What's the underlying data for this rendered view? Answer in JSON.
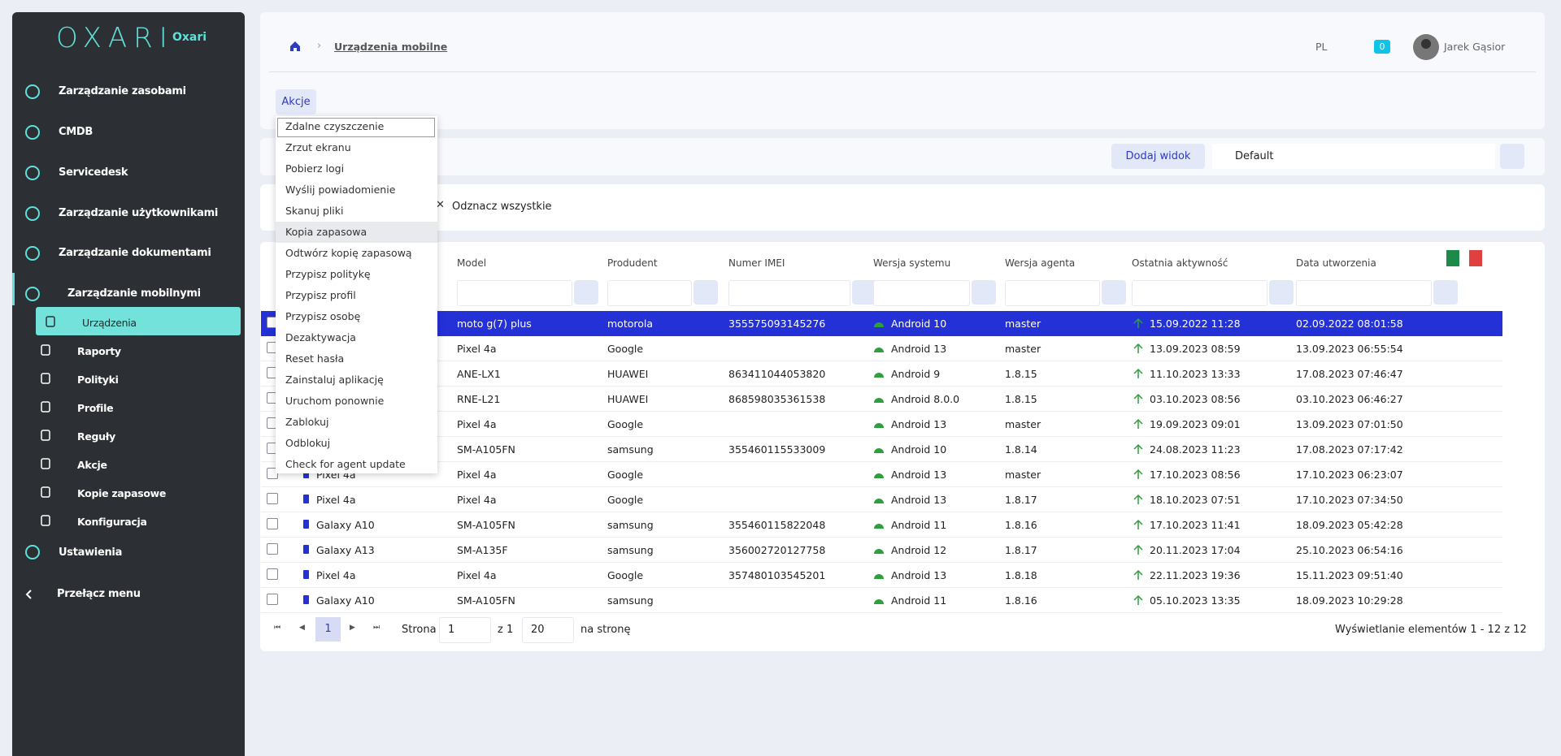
{
  "sidebar": {
    "logo": "OXARI",
    "brand": "Oxari",
    "menu": [
      "Zarządzanie zasobami",
      "CMDB",
      "Servicedesk",
      "Zarządzanie użytkownikami",
      "Zarządzanie dokumentami",
      "Zarządzanie mobilnymi"
    ],
    "submenu": [
      "Urządzenia",
      "Raporty",
      "Polityki",
      "Profile",
      "Reguły",
      "Akcje",
      "Kopie zapasowe",
      "Konfiguracja"
    ],
    "settings": "Ustawienia",
    "toggle": "Przełącz menu"
  },
  "header": {
    "breadcrumb": "Urządzenia mobilne",
    "language": "PL",
    "notifications": 0,
    "user": "Jarek Gąsior"
  },
  "actions": {
    "button": "Akcje",
    "items": [
      "Zdalne czyszczenie",
      "Zrzut ekranu",
      "Pobierz logi",
      "Wyślij powiadomienie",
      "Skanuj pliki",
      "Kopia zapasowa",
      "Odtwórz kopię zapasową",
      "Przypisz politykę",
      "Przypisz profil",
      "Przypisz osobę",
      "Dezaktywacja",
      "Reset hasła",
      "Zainstaluj aplikację",
      "Uruchom ponownie",
      "Zablokuj",
      "Odblokuj",
      "Check for agent update"
    ]
  },
  "toolbar": {
    "add_view": "Dodaj widok",
    "view": "Default"
  },
  "selection": {
    "clear": "Odznacz wszystkie"
  },
  "table": {
    "columns": [
      null,
      "Model",
      "Produdent",
      "Numer IMEI",
      "Wersja systemu",
      "Wersja agenta",
      "Ostatnia aktywność",
      "Data utworzenia"
    ],
    "rows": [
      [
        null,
        "moto g(7) plus",
        "motorola",
        "355575093145276",
        "Android 10",
        "master",
        "15.09.2022 11:28",
        "02.09.2022 08:01:58"
      ],
      [
        null,
        "Pixel 4a",
        "Google",
        null,
        "Android 13",
        "master",
        "13.09.2023 08:59",
        "13.09.2023 06:55:54"
      ],
      [
        null,
        "ANE-LX1",
        "HUAWEI",
        "863411044053820",
        "Android 9",
        "1.8.15",
        "11.10.2023 13:33",
        "17.08.2023 07:46:47"
      ],
      [
        null,
        "RNE-L21",
        "HUAWEI",
        "868598035361538",
        "Android 8.0.0",
        "1.8.15",
        "03.10.2023 08:56",
        "03.10.2023 06:46:27"
      ],
      [
        null,
        "Pixel 4a",
        "Google",
        null,
        "Android 13",
        "master",
        "19.09.2023 09:01",
        "13.09.2023 07:01:50"
      ],
      [
        null,
        "SM-A105FN",
        "samsung",
        "355460115533009",
        "Android 10",
        "1.8.14",
        "24.08.2023 11:23",
        "17.08.2023 07:17:42"
      ],
      [
        "Pixel 4a",
        "Pixel 4a",
        "Google",
        null,
        "Android 13",
        "master",
        "17.10.2023 08:56",
        "17.10.2023 06:23:07"
      ],
      [
        "Pixel 4a",
        "Pixel 4a",
        "Google",
        null,
        "Android 13",
        "1.8.17",
        "18.10.2023 07:51",
        "17.10.2023 07:34:50"
      ],
      [
        "Galaxy A10",
        "SM-A105FN",
        "samsung",
        "355460115822048",
        "Android 11",
        "1.8.16",
        "17.10.2023 11:41",
        "18.09.2023 05:42:28"
      ],
      [
        "Galaxy A13",
        "SM-A135F",
        "samsung",
        "356002720127758",
        "Android 12",
        "1.8.17",
        "20.11.2023 17:04",
        "25.10.2023 06:54:16"
      ],
      [
        "Pixel 4a",
        "Pixel 4a",
        "Google",
        "357480103545201",
        "Android 13",
        "1.8.18",
        "22.11.2023 19:36",
        "15.11.2023 09:51:40"
      ],
      [
        "Galaxy A10",
        "SM-A105FN",
        "samsung",
        null,
        "Android 11",
        "1.8.16",
        "05.10.2023 13:35",
        "18.09.2023 10:29:28"
      ]
    ]
  },
  "pagination": {
    "page_label": "Strona",
    "page": 1,
    "of": "z 1",
    "per_page": 20,
    "per_page_label": "na stronę",
    "summary": "Wyświetlanie elementów 1 - 12 z 12"
  }
}
